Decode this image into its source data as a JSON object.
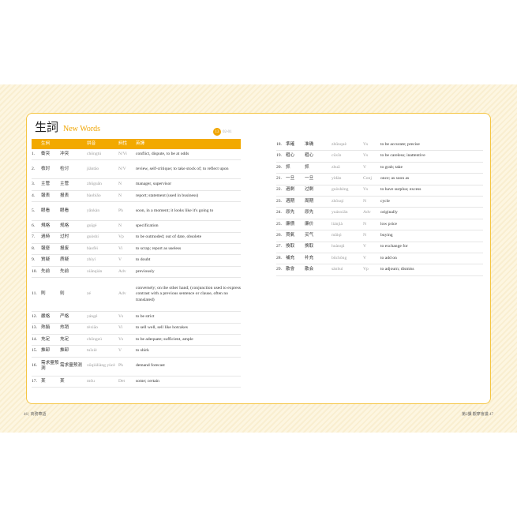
{
  "title": {
    "zh": "生詞",
    "en": "New Words"
  },
  "badge": {
    "number": "13",
    "label": "02-01"
  },
  "headers": [
    "",
    "生詞",
    "",
    "拼音",
    "詞性",
    "英譯"
  ],
  "left": [
    [
      "1.",
      "衝突",
      "冲突",
      "chōngtú",
      "N/Vi",
      "conflict, dispute, to be at odds"
    ],
    [
      "2.",
      "檢討",
      "检讨",
      "jiǎntǎo",
      "N/V",
      "review, self-critique; to take stock of; to reflect upon"
    ],
    [
      "3.",
      "主管",
      "主管",
      "zhǔguǎn",
      "N",
      "manager, supervisor"
    ],
    [
      "4.",
      "報表",
      "报表",
      "bàobiǎo",
      "N",
      "report; statement (used in business)"
    ],
    [
      "5.",
      "眼看",
      "眼看",
      "yǎnkàn",
      "Ph",
      "soon, in a moment; it looks like it's going to"
    ],
    [
      "6.",
      "規格",
      "规格",
      "guīgé",
      "N",
      "specification"
    ],
    [
      "7.",
      "過時",
      "过时",
      "guòshí",
      "Vp",
      "to be outmoded; out of date, obsolete"
    ],
    [
      "8.",
      "報廢",
      "报废",
      "bàofèi",
      "Vi",
      "to scrap; report as useless"
    ],
    [
      "9.",
      "質疑",
      "质疑",
      "zhìyí",
      "V",
      "to doubt"
    ],
    [
      "10.",
      "先前",
      "先前",
      "xiānqián",
      "Adv",
      "previously"
    ],
    [
      "11.",
      "則",
      "则",
      "zé",
      "Adv",
      "conversely; on the other hand; (conjunction used to express contrast with a previous sentence or clause, often no translated)"
    ],
    [
      "12.",
      "嚴格",
      "严格",
      "yángé",
      "Vs",
      "to be strict"
    ],
    [
      "13.",
      "熱銷",
      "热销",
      "rèxiāo",
      "Vi",
      "to sell well, sell like hotcakes"
    ],
    [
      "14.",
      "充足",
      "充足",
      "chōngzú",
      "Vs",
      "to be adequate; sufficient, ample"
    ],
    [
      "15.",
      "推卸",
      "推卸",
      "tuīxiè",
      "V",
      "to shirk"
    ],
    [
      "16.",
      "需求量預測",
      "需求量预测",
      "xūqiúliàng yùcè",
      "Ph",
      "demand forecast"
    ],
    [
      "17.",
      "某",
      "某",
      "mǒu",
      "Det",
      "some; certain"
    ]
  ],
  "right": [
    [
      "18.",
      "準確",
      "准确",
      "zhǔnquè",
      "Vs",
      "to be accurate; precise"
    ],
    [
      "19.",
      "粗心",
      "粗心",
      "cūxīn",
      "Vs",
      "to be careless; inattentive"
    ],
    [
      "20.",
      "抓",
      "抓",
      "zhuā",
      "V",
      "to grab; take"
    ],
    [
      "21.",
      "一旦",
      "一旦",
      "yídàn",
      "Conj",
      "once; as soon as"
    ],
    [
      "22.",
      "過剩",
      "过剩",
      "guòshèng",
      "Vs",
      "to have surplus; excess"
    ],
    [
      "23.",
      "週期",
      "周期",
      "zhōuqí",
      "N",
      "cycle"
    ],
    [
      "24.",
      "原先",
      "原先",
      "yuánxiān",
      "Adv",
      "originally"
    ],
    [
      "25.",
      "廉價",
      "廉价",
      "liánjià",
      "N",
      "low price"
    ],
    [
      "26.",
      "買氣",
      "买气",
      "mǎiqì",
      "N",
      "buying"
    ],
    [
      "27.",
      "換取",
      "换取",
      "huànqǔ",
      "V",
      "to exchange for"
    ],
    [
      "28.",
      "補充",
      "补充",
      "bǔchōng",
      "V",
      "to add on"
    ],
    [
      "29.",
      "散會",
      "散会",
      "sànhuì",
      "Vp",
      "to adjourn; dismiss"
    ]
  ],
  "footer": {
    "left": "46 | 商務華語",
    "right": "第2課 觀摩會議 47"
  }
}
